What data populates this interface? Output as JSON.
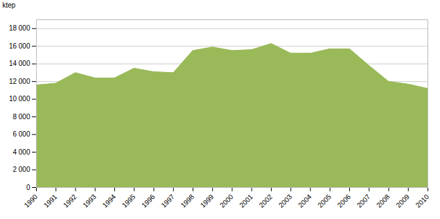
{
  "chart_data": {
    "type": "area",
    "ylabel": "ktep",
    "x": [
      1990,
      1991,
      1992,
      1993,
      1994,
      1995,
      1996,
      1997,
      1998,
      1999,
      2000,
      2001,
      2002,
      2003,
      2004,
      2005,
      2006,
      2007,
      2008,
      2009,
      2010
    ],
    "values": [
      11600,
      11800,
      13000,
      12400,
      12400,
      13500,
      13100,
      13000,
      15500,
      15900,
      15500,
      15600,
      16300,
      15200,
      15200,
      15700,
      15700,
      13800,
      12000,
      11700,
      11200
    ],
    "color": "#9aba59",
    "xlim": [
      1990,
      2010
    ],
    "xticks": [
      1990,
      1991,
      1992,
      1993,
      1994,
      1995,
      1996,
      1997,
      1998,
      1999,
      2000,
      2001,
      2002,
      2003,
      2004,
      2005,
      2006,
      2007,
      2008,
      2009,
      2010
    ],
    "ylim": [
      0,
      19000
    ],
    "yticks": [
      0,
      {
        "value": 2000,
        "label": "2 000"
      },
      {
        "value": 4000,
        "label": "4 000"
      },
      {
        "value": 6000,
        "label": "6 000"
      },
      {
        "value": 8000,
        "label": "8 000"
      },
      {
        "value": 10000,
        "label": "10 000"
      },
      {
        "value": 12000,
        "label": "12 000"
      },
      {
        "value": 14000,
        "label": "14 000"
      },
      {
        "value": 16000,
        "label": "16 000"
      },
      {
        "value": 18000,
        "label": "18 000"
      }
    ],
    "grid": "y"
  }
}
